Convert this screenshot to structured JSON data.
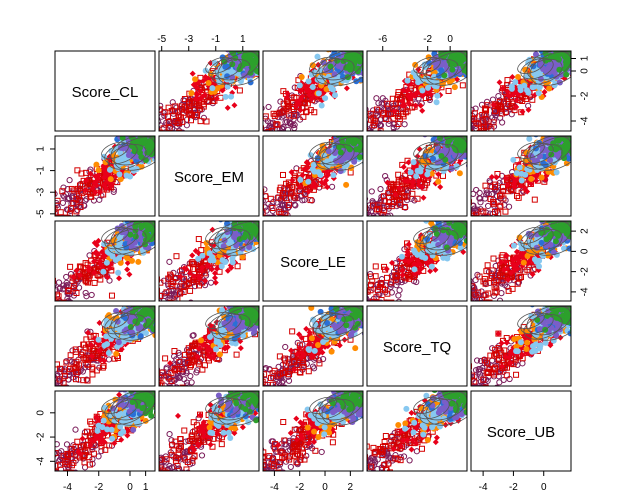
{
  "chart_data": {
    "type": "scatter",
    "subtype": "pairs-matrix",
    "variables": [
      "Score_CL",
      "Score_EM",
      "Score_LE",
      "Score_TQ",
      "Score_UB"
    ],
    "ranges": {
      "Score_CL": [
        -4.8,
        1.6
      ],
      "Score_EM": [
        -5.2,
        2.2
      ],
      "Score_LE": [
        -4.9,
        3.0
      ],
      "Score_TQ": [
        -7.4,
        1.5
      ],
      "Score_UB": [
        -4.8,
        1.8
      ]
    },
    "axis_ticks": {
      "Score_CL": [
        "-4",
        "-2",
        "0",
        "1"
      ],
      "Score_EM": [
        "-5",
        "-3",
        "-1",
        "1"
      ],
      "Score_LE": [
        "-4",
        "-2",
        "0",
        "2"
      ],
      "Score_TQ": [
        "-6",
        "-2",
        "0"
      ],
      "Score_UB": [
        "-4",
        "-2",
        "0"
      ]
    },
    "top_axis_panels": [
      "Score_EM",
      "Score_TQ"
    ],
    "bottom_axis_panels": [
      "Score_CL",
      "Score_LE",
      "Score_UB"
    ],
    "left_axis_panels": [
      "Score_EM",
      "Score_UB"
    ],
    "right_axis_panels": [
      "Score_CL",
      "Score_LE"
    ],
    "grid": false,
    "legend": "none",
    "groups": [
      {
        "color": "#7b1c5a",
        "marker": "open-circle",
        "center": 0.18,
        "spread": 0.2
      },
      {
        "color": "#d40000",
        "marker": "open-square",
        "center": 0.42,
        "spread": 0.2
      },
      {
        "color": "#e8001a",
        "marker": "filled-diamond",
        "center": 0.62,
        "spread": 0.12
      },
      {
        "color": "#ff8c00",
        "marker": "filled-circle",
        "center": 0.78,
        "spread": 0.1
      },
      {
        "color": "#87c8f0",
        "marker": "filled-circle",
        "center": 0.78,
        "spread": 0.12
      },
      {
        "color": "#2a6fd6",
        "marker": "filled-circle",
        "center": 0.9,
        "spread": 0.05
      },
      {
        "color": "#7a5ec8",
        "marker": "filled-circle",
        "center": 0.88,
        "spread": 0.05
      },
      {
        "color": "#2ca02c",
        "marker": "filled-circle",
        "center": 0.95,
        "spread": 0.03
      }
    ],
    "ellipse_color": "#555555"
  }
}
